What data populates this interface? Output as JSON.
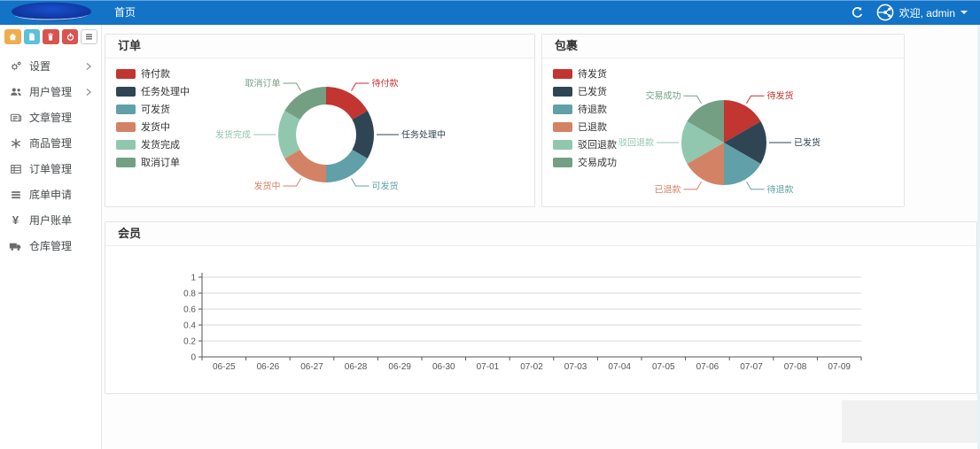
{
  "navbar": {
    "home_tab": "首页",
    "welcome_text": "欢迎, admin",
    "bg_color": "#1273c7"
  },
  "sidebar": {
    "toolbar": [
      {
        "icon": "home-icon",
        "color": "#f0ad4e"
      },
      {
        "icon": "file-icon",
        "color": "#5bc0de"
      },
      {
        "icon": "trash-icon",
        "color": "#d9534f"
      },
      {
        "icon": "power-icon",
        "color": "#d9534f"
      },
      {
        "icon": "list-icon",
        "color": "#ffffff"
      }
    ],
    "items": [
      {
        "label": "设置",
        "icon": "gears-icon",
        "expandable": true
      },
      {
        "label": "用户管理",
        "icon": "users-icon",
        "expandable": true
      },
      {
        "label": "文章管理",
        "icon": "newspaper-icon",
        "expandable": false
      },
      {
        "label": "商品管理",
        "icon": "asterisk-icon",
        "expandable": false
      },
      {
        "label": "订单管理",
        "icon": "table-icon",
        "expandable": false
      },
      {
        "label": "底单申请",
        "icon": "list-icon",
        "expandable": false
      },
      {
        "label": "用户账单",
        "icon": "yen-icon",
        "glyph": "¥",
        "expandable": false
      },
      {
        "label": "仓库管理",
        "icon": "truck-icon",
        "expandable": false
      }
    ]
  },
  "panels": {
    "orders": {
      "title": "订单"
    },
    "packages": {
      "title": "包裹"
    },
    "members": {
      "title": "会员"
    }
  },
  "chart_data": [
    {
      "type": "pie",
      "variant": "donut",
      "title": "订单",
      "labels": [
        "待付款",
        "任务处理中",
        "可发货",
        "发货中",
        "发货完成",
        "取消订单"
      ],
      "values": [
        1,
        1,
        1,
        1,
        1,
        1
      ],
      "values_estimated": true,
      "colors": [
        "#c23531",
        "#2f4554",
        "#61a0a8",
        "#d48265",
        "#91c7ae",
        "#749f83"
      ],
      "legend_position": "left"
    },
    {
      "type": "pie",
      "variant": "pie",
      "title": "包裹",
      "labels": [
        "待发货",
        "已发货",
        "待退款",
        "已退款",
        "驳回退款",
        "交易成功"
      ],
      "values": [
        1,
        1,
        1,
        1,
        1,
        1
      ],
      "values_estimated": true,
      "colors": [
        "#c23531",
        "#2f4554",
        "#61a0a8",
        "#d48265",
        "#91c7ae",
        "#749f83"
      ],
      "legend_position": "left"
    },
    {
      "type": "line",
      "title": "会员",
      "x": [
        "06-25",
        "06-26",
        "06-27",
        "06-28",
        "06-29",
        "06-30",
        "07-01",
        "07-02",
        "07-03",
        "07-04",
        "07-05",
        "07-06",
        "07-07",
        "07-08",
        "07-09"
      ],
      "series": [],
      "ylim": [
        0,
        1
      ],
      "yticks": [
        0,
        0.2,
        0.4,
        0.6,
        0.8,
        1
      ],
      "grid": true,
      "legend_position": "none"
    }
  ]
}
